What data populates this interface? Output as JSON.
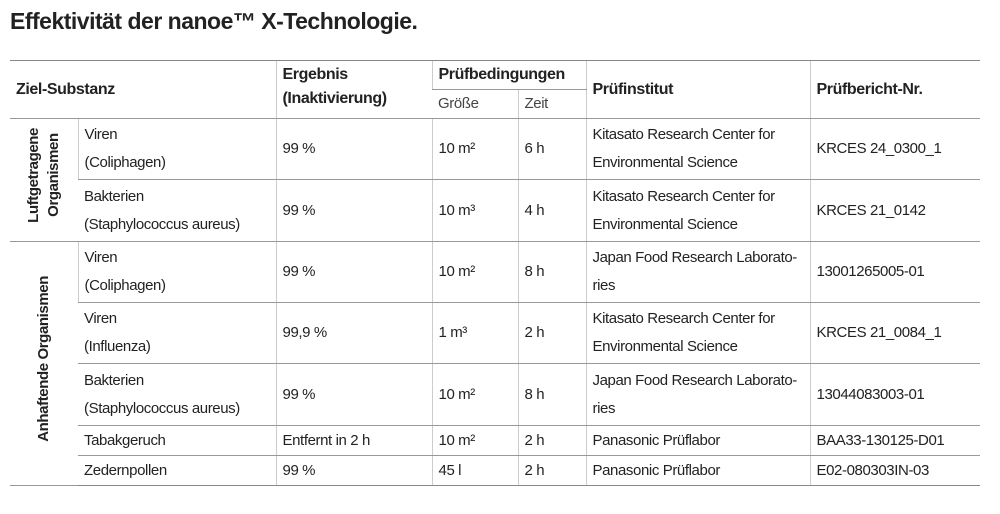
{
  "title": "Effektivität der nanoe™ X-Technologie.",
  "table": {
    "header": {
      "substance": "Ziel-Substanz",
      "result": [
        "Ergebnis",
        "(Inaktivierung)"
      ],
      "conditions": "Prüfbedingungen",
      "size": "Größe",
      "time": "Zeit",
      "institute": "Prüfinstitut",
      "report": "Prüfbericht-Nr."
    },
    "groups": [
      {
        "label": [
          "Luftgetragene",
          "Organismen"
        ],
        "rows": [
          {
            "substance": [
              "Viren",
              "(Coliphagen)"
            ],
            "result": "99 %",
            "size": "10 m²",
            "time": "6 h",
            "institute": [
              "Kitasato Research Center for",
              "Environmental Science"
            ],
            "report": "KRCES 24_0300_1"
          },
          {
            "substance": [
              "Bakterien",
              "(Staphylococcus aureus)"
            ],
            "result": "99 %",
            "size": "10 m³",
            "time": "4 h",
            "institute": [
              "Kitasato Research Center for",
              "Environmental Science"
            ],
            "report": "KRCES 21_0142"
          }
        ]
      },
      {
        "label": [
          "Anhaftende Organismen"
        ],
        "rows": [
          {
            "substance": [
              "Viren",
              "(Coliphagen)"
            ],
            "result": "99 %",
            "size": "10 m²",
            "time": "8 h",
            "institute": [
              "Japan Food Research Laborato-",
              "ries"
            ],
            "report": "13001265005-01"
          },
          {
            "substance": [
              "Viren",
              "(Influenza)"
            ],
            "result": "99,9 %",
            "size": "1 m³",
            "time": "2 h",
            "institute": [
              "Kitasato Research Center for",
              "Environmental Science"
            ],
            "report": "KRCES 21_0084_1"
          },
          {
            "substance": [
              "Bakterien",
              "(Staphylococcus aureus)"
            ],
            "result": "99 %",
            "size": "10 m²",
            "time": "8 h",
            "institute": [
              "Japan Food Research Laborato-",
              "ries"
            ],
            "report": "13044083003-01"
          },
          {
            "substance": [
              "Tabakgeruch"
            ],
            "result": "Entfernt in 2 h",
            "size": "10 m²",
            "time": "2 h",
            "institute": [
              "Panasonic Prüflabor"
            ],
            "report": "BAA33-130125-D01"
          },
          {
            "substance": [
              "Zedernpollen"
            ],
            "result": "99 %",
            "size": "45 l",
            "time": "2 h",
            "institute": [
              "Panasonic Prüflabor"
            ],
            "report": "E02-080303IN-03"
          }
        ]
      }
    ]
  }
}
